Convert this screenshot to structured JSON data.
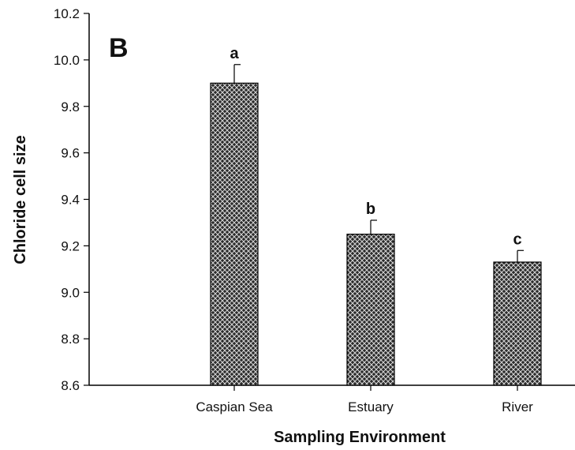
{
  "chart_data": {
    "type": "bar",
    "panel_label": "B",
    "categories": [
      "Caspian Sea",
      "Estuary",
      "River"
    ],
    "values": [
      9.9,
      9.25,
      9.13
    ],
    "errors": [
      0.08,
      0.06,
      0.05
    ],
    "significance_letters": [
      "a",
      "b",
      "c"
    ],
    "xlabel": "Sampling Environment",
    "ylabel": "Chloride cell size",
    "ylim": [
      8.6,
      10.2
    ],
    "yticks": [
      "8.6",
      "8.8",
      "9.0",
      "9.2",
      "9.4",
      "9.6",
      "9.8",
      "10.0",
      "10.2"
    ],
    "bar_fill": "crosshatch",
    "colors": {
      "bar": "#555555",
      "axis": "#000000"
    }
  }
}
